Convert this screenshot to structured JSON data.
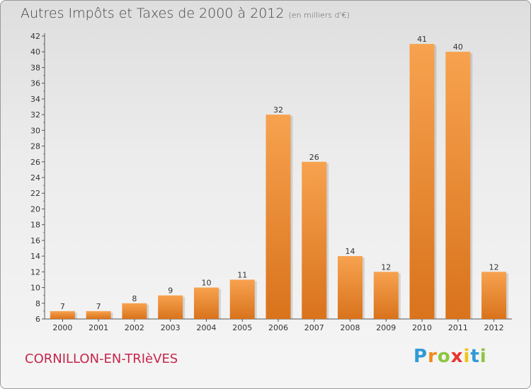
{
  "chart_data": {
    "type": "bar",
    "title": "Autres Impôts et Taxes de 2000 à 2012",
    "subtitle": "(en milliers d'€)",
    "categories": [
      "2000",
      "2001",
      "2002",
      "2003",
      "2004",
      "2005",
      "2006",
      "2007",
      "2008",
      "2009",
      "2010",
      "2011",
      "2012"
    ],
    "values": [
      7,
      7,
      8,
      9,
      10,
      11,
      32,
      26,
      14,
      12,
      41,
      40,
      12
    ],
    "ylim": [
      6,
      42
    ],
    "yticks": [
      6,
      8,
      10,
      12,
      14,
      16,
      18,
      20,
      22,
      24,
      26,
      28,
      30,
      32,
      34,
      36,
      38,
      40,
      42
    ],
    "grid": false,
    "bar_color": "#f0953c"
  },
  "footer": {
    "place": "CORNILLON-EN-TRIèVES",
    "logo": [
      "P",
      "r",
      "o",
      "x",
      "i",
      "t",
      "i"
    ],
    "logo_colors": [
      "#2e9bd6",
      "#f08a1c",
      "#8cc63f",
      "#e8352e",
      "#f0c419",
      "#2e9bd6",
      "#8cc63f"
    ]
  }
}
